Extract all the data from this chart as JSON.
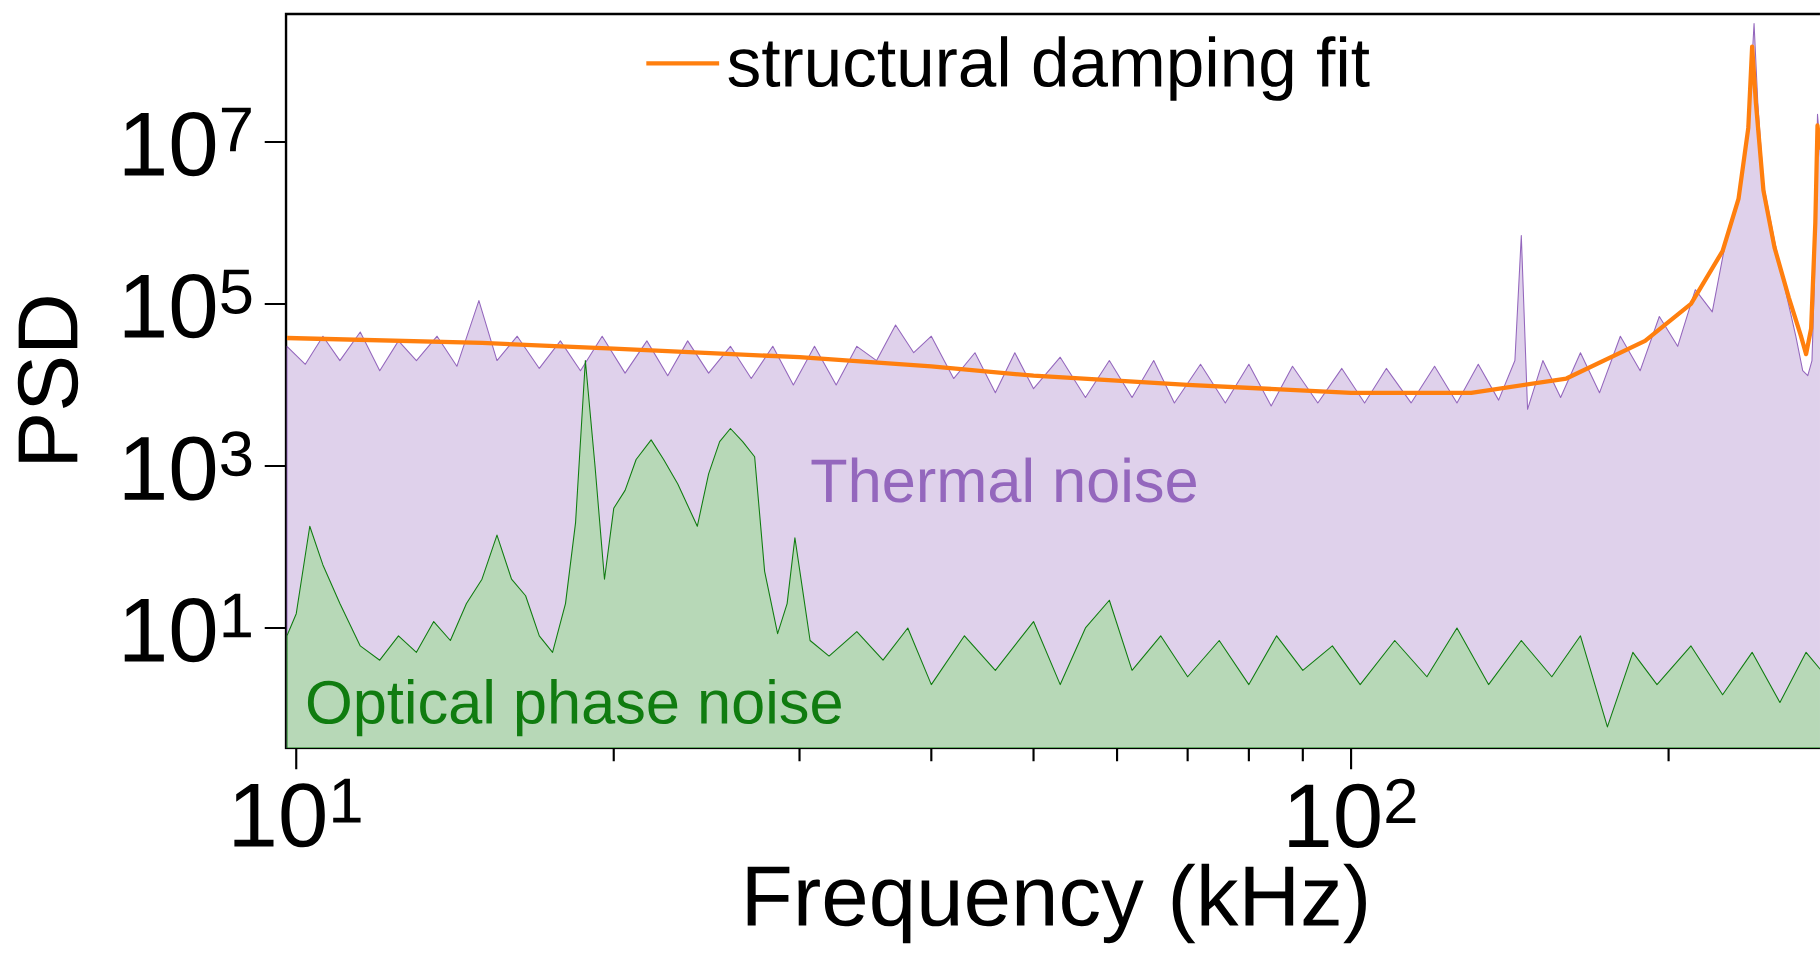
{
  "chart_data": {
    "type": "area",
    "xlabel": "Frequency (kHz)",
    "ylabel": "PSD",
    "log": "xy",
    "legend": "top",
    "marker": "none",
    "line_style": "solid",
    "xlim": [
      9.78,
      282
    ],
    "ylim": [
      0.33,
      380000000
    ],
    "xticks": [
      {
        "value": 10,
        "label": "10$^{1}$"
      },
      {
        "value": 20,
        "label": null
      },
      {
        "value": 30,
        "label": null
      },
      {
        "value": 40,
        "label": null
      },
      {
        "value": 50,
        "label": null
      },
      {
        "value": 60,
        "label": null
      },
      {
        "value": 70,
        "label": null
      },
      {
        "value": 80,
        "label": null
      },
      {
        "value": 90,
        "label": null
      },
      {
        "value": 100,
        "label": "10$^{2}$"
      },
      {
        "value": 200,
        "label": null
      }
    ],
    "yticks": [
      {
        "value": 10,
        "label": "10$^{1}$"
      },
      {
        "value": 1000,
        "label": "10$^{3}$"
      },
      {
        "value": 100000,
        "label": "10$^{5}$"
      },
      {
        "value": 10000000,
        "label": "10$^{7}$"
      }
    ],
    "series": [
      {
        "name": "Thermal noise",
        "color": "#9467bd",
        "x": [
          9.8,
          10.2,
          10.6,
          11,
          11.5,
          12,
          12.5,
          13,
          13.6,
          14.2,
          14.9,
          15.5,
          16.2,
          17,
          17.8,
          18.6,
          19.5,
          20.5,
          21.5,
          22.5,
          23.5,
          24.6,
          25.8,
          27,
          28.3,
          29.6,
          31,
          32.5,
          34,
          35.5,
          37,
          38.5,
          40,
          42,
          44,
          46,
          48,
          50,
          53,
          56,
          59,
          62,
          65,
          68,
          72,
          76,
          80,
          84,
          88,
          93,
          98,
          103,
          108,
          114,
          120,
          126,
          132,
          138,
          143,
          145,
          147,
          152,
          158,
          165,
          172,
          180,
          188,
          196,
          204,
          212,
          220,
          226,
          232,
          236,
          239,
          241,
          243,
          246,
          252,
          258,
          264,
          268,
          271,
          273.5,
          275,
          276,
          276.8,
          277.8,
          279
        ],
        "values": [
          30000,
          18000,
          40000,
          20000,
          45000,
          15000,
          35000,
          20000,
          40000,
          17000,
          110000,
          20000,
          40000,
          16000,
          35000,
          15000,
          40000,
          14000,
          35000,
          13000,
          35000,
          14000,
          30000,
          12000,
          30000,
          10000,
          30000,
          10000,
          30000,
          20000,
          55000,
          25000,
          40000,
          12000,
          25000,
          8000,
          25000,
          9000,
          22000,
          7000,
          20000,
          7000,
          20000,
          6000,
          18000,
          6000,
          18000,
          5500,
          17000,
          6000,
          16000,
          6000,
          16000,
          6000,
          17000,
          6000,
          18000,
          6500,
          20000,
          700000,
          5000,
          20000,
          7000,
          25000,
          8000,
          40000,
          15000,
          70000,
          30000,
          150000,
          80000,
          500000,
          1500000,
          6000000,
          40000000,
          290000000,
          30000000,
          3000000,
          600000,
          150000,
          40000,
          15000,
          13000,
          20000,
          200000,
          3000000,
          22000000,
          12000000,
          5000000
        ]
      },
      {
        "name": "Optical phase noise",
        "color": "#107c10",
        "x": [
          9.8,
          10,
          10.3,
          10.6,
          11,
          11.5,
          12,
          12.5,
          13,
          13.5,
          14,
          14.5,
          15,
          15.5,
          16,
          16.5,
          17,
          17.5,
          18,
          18.4,
          18.8,
          19.2,
          19.6,
          20,
          20.5,
          21,
          21.7,
          22.3,
          23,
          24,
          24.6,
          25.2,
          25.8,
          26.5,
          27.2,
          27.8,
          28.6,
          29.2,
          29.7,
          30.2,
          30.7,
          32,
          34,
          36,
          38,
          40,
          43,
          46,
          50,
          53,
          56,
          59,
          62,
          66,
          70,
          75,
          80,
          85,
          90,
          96,
          102,
          110,
          118,
          126,
          135,
          145,
          155,
          165,
          175,
          185,
          195,
          210,
          225,
          240,
          255,
          270,
          279
        ],
        "values": [
          8,
          15,
          180,
          60,
          20,
          6,
          4,
          8,
          5,
          12,
          7,
          20,
          40,
          140,
          40,
          25,
          8,
          5,
          20,
          200,
          20000,
          1000,
          40,
          300,
          500,
          1200,
          2100,
          1200,
          600,
          180,
          800,
          2000,
          2900,
          2000,
          1300,
          50,
          8.5,
          20,
          130,
          30,
          7,
          4.5,
          9,
          4,
          10,
          2,
          8,
          3,
          12,
          2,
          10,
          22,
          3,
          8,
          2.5,
          7,
          2,
          8,
          3,
          6,
          2,
          7,
          2.5,
          10,
          2,
          7,
          2.5,
          8,
          0.6,
          5,
          2,
          6,
          1.5,
          5,
          1.2,
          5,
          3
        ]
      },
      {
        "name": "structural damping fit",
        "type": "line",
        "color": "#ff7f0e",
        "x": [
          9.8,
          15,
          20,
          30,
          40,
          50,
          70,
          100,
          130,
          160,
          190,
          210,
          225,
          233,
          238,
          240,
          242,
          246,
          252,
          260,
          267,
          270,
          273,
          275.5,
          276.8,
          278.5
        ],
        "values": [
          38000,
          33000,
          28000,
          22000,
          17000,
          13000,
          10000,
          8000,
          8000,
          12000,
          35000,
          100000,
          450000,
          2000000,
          15000000,
          150000000,
          30000000,
          2500000,
          500000,
          120000,
          40000,
          24000,
          50000,
          1000000,
          16000000,
          8000000
        ]
      }
    ]
  }
}
